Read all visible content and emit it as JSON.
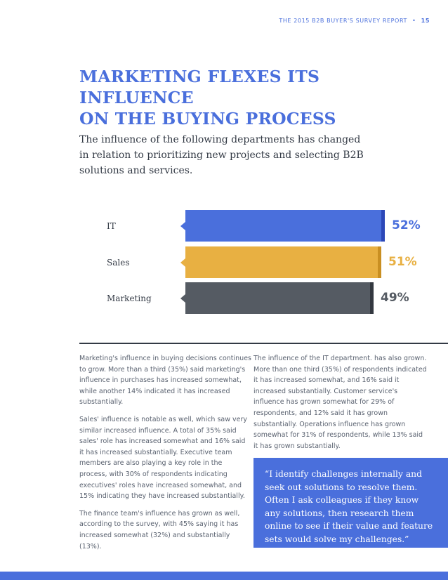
{
  "header": {
    "report_title": "THE 2015 B2B BUYER'S SURVEY REPORT",
    "separator": "•",
    "page_number": "15"
  },
  "title_line1": "MARKETING FLEXES ITS INFLUENCE",
  "title_line2": "ON THE BUYING PROCESS",
  "intro": "The influence of the following departments has changed in relation to prioritizing new projects and selecting B2B solutions and services.",
  "chart_data": {
    "type": "bar",
    "orientation": "horizontal",
    "categories": [
      "IT",
      "Sales",
      "Marketing"
    ],
    "values": [
      52,
      51,
      49
    ],
    "labels": [
      "52%",
      "51%",
      "49%"
    ],
    "unit": "%",
    "colors": [
      "#4a6fdc",
      "#e8b042",
      "#555b63"
    ],
    "cap_colors": [
      "#2c48b8",
      "#c98f22",
      "#333840"
    ],
    "xlim": [
      0,
      52
    ],
    "grid": false,
    "legend": "none"
  },
  "body": {
    "col1": [
      "Marketing's influence in buying decisions continues to grow. More than a third (35%) said marketing's influence in purchases has increased somewhat, while another 14% indicated it has increased substantially.",
      "Sales' influence is notable as well, which saw very similar increased influence. A total of 35% said sales' role has increased somewhat and 16% said it has increased substantially. Executive team members are also playing a key role in the process, with 30% of respondents indicating executives' roles have increased somewhat, and 15% indicating they have increased substantially.",
      "The finance team's influence has grown as well, according to the survey, with 45% saying it has increased somewhat (32%) and substantially (13%)."
    ],
    "col2": [
      "The influence of the IT department. has also grown. More than one third (35%) of respondents indicated it has increased somewhat, and 16% said it increased substantially. Customer service's influence has grown somewhat for 29% of respondents, and 12% said it has grown substantially. Operations influence has grown somewhat for 31% of respondents, while 13% said it has grown substantially."
    ]
  },
  "quote": "“I identify challenges internally and seek out solutions to resolve them. Often I ask colleagues if they know any solutions, then research them online to see if their value and feature sets would solve my challenges.”",
  "colors": {
    "accent": "#4a6fdc",
    "text": "#333a45"
  }
}
